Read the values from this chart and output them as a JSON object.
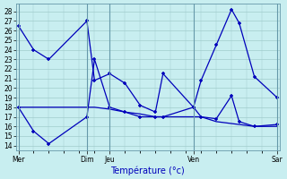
{
  "title": "Température (°c)",
  "bg_color": "#c8eef0",
  "grid_color": "#a0cccc",
  "line_color": "#0000bb",
  "ylim": [
    13.5,
    28.8
  ],
  "yticks": [
    14,
    15,
    16,
    17,
    18,
    19,
    20,
    21,
    22,
    23,
    24,
    25,
    26,
    27,
    28
  ],
  "xlim": [
    -0.15,
    17.15
  ],
  "day_tick_positions": [
    0,
    4.5,
    6,
    11.5,
    17
  ],
  "day_names": [
    "Mer",
    "Dim",
    "Jeu",
    "Ven",
    "Sar"
  ],
  "vline_positions": [
    0,
    4.5,
    6,
    11.5,
    17
  ],
  "series_top_x": [
    0,
    1,
    2,
    4.5,
    5,
    6,
    7,
    8,
    9,
    9.5,
    11.5,
    12,
    13,
    14,
    14.5,
    15.5,
    17
  ],
  "series_top_y": [
    26.5,
    24.0,
    23.0,
    27.0,
    20.8,
    21.5,
    20.5,
    18.2,
    17.5,
    21.5,
    18.0,
    20.8,
    24.5,
    28.2,
    26.8,
    21.2,
    19.0
  ],
  "series_bot_x": [
    0,
    1,
    2,
    4.5,
    5,
    6,
    7,
    8,
    9,
    9.5,
    11.5,
    12,
    13,
    14,
    14.5,
    15.5,
    17
  ],
  "series_bot_y": [
    18.0,
    15.5,
    14.2,
    17.0,
    23.0,
    18.0,
    17.5,
    17.0,
    17.0,
    17.0,
    18.0,
    17.0,
    16.8,
    19.2,
    16.5,
    16.0,
    16.2
  ],
  "series_flat_x": [
    0,
    1,
    2,
    4.5,
    5,
    6,
    7,
    8,
    9,
    9.5,
    11.5,
    12,
    13,
    14,
    14.5,
    15.5,
    17
  ],
  "series_flat_y": [
    18.0,
    18.0,
    18.0,
    18.0,
    18.0,
    17.8,
    17.5,
    17.3,
    17.0,
    17.0,
    17.0,
    17.0,
    16.5,
    16.3,
    16.2,
    16.0,
    16.0
  ]
}
